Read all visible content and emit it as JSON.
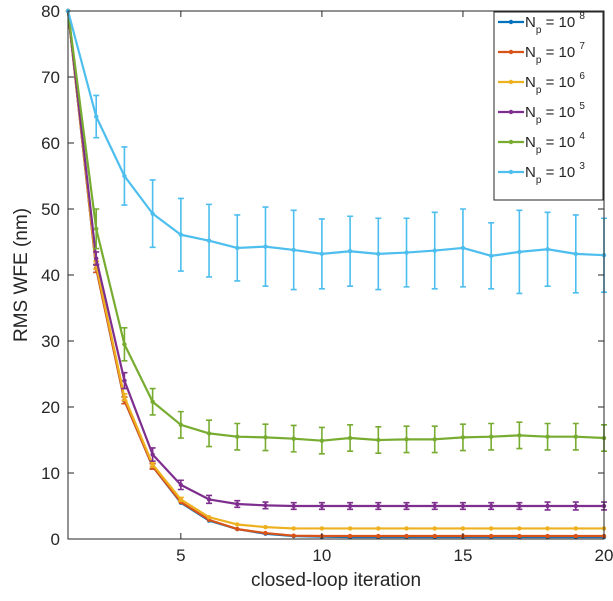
{
  "chart_data": {
    "type": "line",
    "title": "",
    "xlabel": "closed-loop iteration",
    "ylabel": "RMS WFE (nm)",
    "xlim": [
      1,
      20
    ],
    "ylim": [
      0,
      80
    ],
    "xticks": [
      5,
      10,
      15,
      20
    ],
    "yticks": [
      0,
      10,
      20,
      30,
      40,
      50,
      60,
      70,
      80
    ],
    "grid": false,
    "legend_position": "top-right",
    "error_bars": true,
    "x": [
      1,
      2,
      3,
      4,
      5,
      6,
      7,
      8,
      9,
      10,
      11,
      12,
      13,
      14,
      15,
      16,
      17,
      18,
      19,
      20
    ],
    "series": [
      {
        "name": "N_p = 10^8",
        "legend_base": "N",
        "legend_sub": "p",
        "legend_eq": "= 10",
        "legend_exp": "8",
        "color": "#0072bd",
        "values": [
          80,
          41,
          21,
          11,
          5.5,
          2.8,
          1.5,
          0.8,
          0.45,
          0.35,
          0.3,
          0.3,
          0.3,
          0.3,
          0.3,
          0.3,
          0.3,
          0.3,
          0.3,
          0.3
        ],
        "errors": [
          0.2,
          0.6,
          0.5,
          0.4,
          0.2,
          0.15,
          0.1,
          0.1,
          0.05,
          0.05,
          0.05,
          0.05,
          0.05,
          0.05,
          0.05,
          0.05,
          0.05,
          0.05,
          0.05,
          0.05
        ]
      },
      {
        "name": "N_p = 10^7",
        "legend_base": "N",
        "legend_sub": "p",
        "legend_eq": "= 10",
        "legend_exp": "7",
        "color": "#d95319",
        "values": [
          80,
          41,
          21,
          11,
          5.6,
          2.9,
          1.5,
          0.9,
          0.5,
          0.45,
          0.45,
          0.45,
          0.45,
          0.45,
          0.45,
          0.45,
          0.45,
          0.45,
          0.45,
          0.45
        ],
        "errors": [
          0.2,
          0.6,
          0.5,
          0.4,
          0.2,
          0.15,
          0.1,
          0.1,
          0.05,
          0.05,
          0.05,
          0.05,
          0.05,
          0.05,
          0.05,
          0.05,
          0.05,
          0.05,
          0.05,
          0.05
        ]
      },
      {
        "name": "N_p = 10^6",
        "legend_base": "N",
        "legend_sub": "p",
        "legend_eq": "= 10",
        "legend_exp": "6",
        "color": "#edb120",
        "values": [
          80,
          41.5,
          21.5,
          11.3,
          6,
          3.3,
          2.2,
          1.8,
          1.6,
          1.6,
          1.6,
          1.6,
          1.6,
          1.6,
          1.6,
          1.6,
          1.6,
          1.6,
          1.6,
          1.6
        ],
        "errors": [
          0.2,
          0.6,
          0.5,
          0.4,
          0.3,
          0.2,
          0.15,
          0.15,
          0.1,
          0.1,
          0.1,
          0.1,
          0.1,
          0.1,
          0.1,
          0.1,
          0.1,
          0.1,
          0.1,
          0.1
        ]
      },
      {
        "name": "N_p = 10^5",
        "legend_base": "N",
        "legend_sub": "p",
        "legend_eq": "= 10",
        "legend_exp": "5",
        "color": "#7e2f8e",
        "values": [
          80,
          42.5,
          24,
          12.8,
          8.2,
          6,
          5.3,
          5.1,
          5,
          5,
          5,
          5,
          5,
          5,
          5,
          5,
          5,
          5,
          5,
          5
        ],
        "errors": [
          0.2,
          1.0,
          1.2,
          1.0,
          0.7,
          0.6,
          0.5,
          0.5,
          0.5,
          0.5,
          0.5,
          0.5,
          0.5,
          0.5,
          0.5,
          0.5,
          0.5,
          0.6,
          0.6,
          0.6
        ]
      },
      {
        "name": "N_p = 10^4",
        "legend_base": "N",
        "legend_sub": "p",
        "legend_eq": "= 10",
        "legend_exp": "4",
        "color": "#77ac30",
        "values": [
          80,
          47,
          29.5,
          20.8,
          17.3,
          16,
          15.5,
          15.4,
          15.2,
          14.9,
          15.3,
          15,
          15.1,
          15.1,
          15.4,
          15.5,
          15.7,
          15.5,
          15.5,
          15.3
        ],
        "errors": [
          0.2,
          3.0,
          2.5,
          2.0,
          2.0,
          2.0,
          2.0,
          2.0,
          2.0,
          2.0,
          2.0,
          2.0,
          2.0,
          2.0,
          2.0,
          2.0,
          2.0,
          2.0,
          2.0,
          2.0
        ]
      },
      {
        "name": "N_p = 10^3",
        "legend_base": "N",
        "legend_sub": "p",
        "legend_eq": "= 10",
        "legend_exp": "3",
        "color": "#4dbeee",
        "values": [
          80,
          64,
          55,
          49.3,
          46.1,
          45.2,
          44.1,
          44.3,
          43.8,
          43.2,
          43.6,
          43.2,
          43.4,
          43.7,
          44.1,
          42.9,
          43.5,
          43.9,
          43.2,
          43
        ],
        "errors": [
          0.2,
          3.2,
          4.4,
          5.1,
          5.5,
          5.5,
          5.0,
          6.0,
          6.0,
          5.3,
          5.3,
          5.4,
          5.2,
          5.8,
          5.9,
          5.0,
          6.3,
          5.6,
          5.9,
          5.6
        ]
      }
    ]
  }
}
